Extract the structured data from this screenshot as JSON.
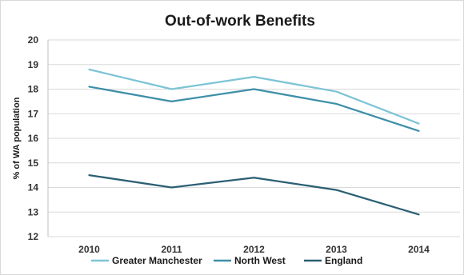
{
  "chart_data": {
    "type": "line",
    "title": "Out-of-work Benefits",
    "xlabel": "",
    "ylabel": "% of WA population",
    "categories": [
      "2010",
      "2011",
      "2012",
      "2013",
      "2014"
    ],
    "y_ticks": [
      "20",
      "19",
      "18",
      "17",
      "16",
      "15",
      "14",
      "13",
      "12"
    ],
    "ylim": [
      12,
      20
    ],
    "grid": "horizontal",
    "legend_position": "bottom",
    "series": [
      {
        "name": "Greater Manchester",
        "color": "#7cc4d6",
        "values": [
          18.8,
          18.0,
          18.5,
          17.9,
          16.6
        ]
      },
      {
        "name": "North West",
        "color": "#3e8fa8",
        "values": [
          18.1,
          17.5,
          18.0,
          17.4,
          16.3
        ]
      },
      {
        "name": "England",
        "color": "#2b5f73",
        "values": [
          14.5,
          14.0,
          14.4,
          13.9,
          12.9
        ]
      }
    ]
  }
}
